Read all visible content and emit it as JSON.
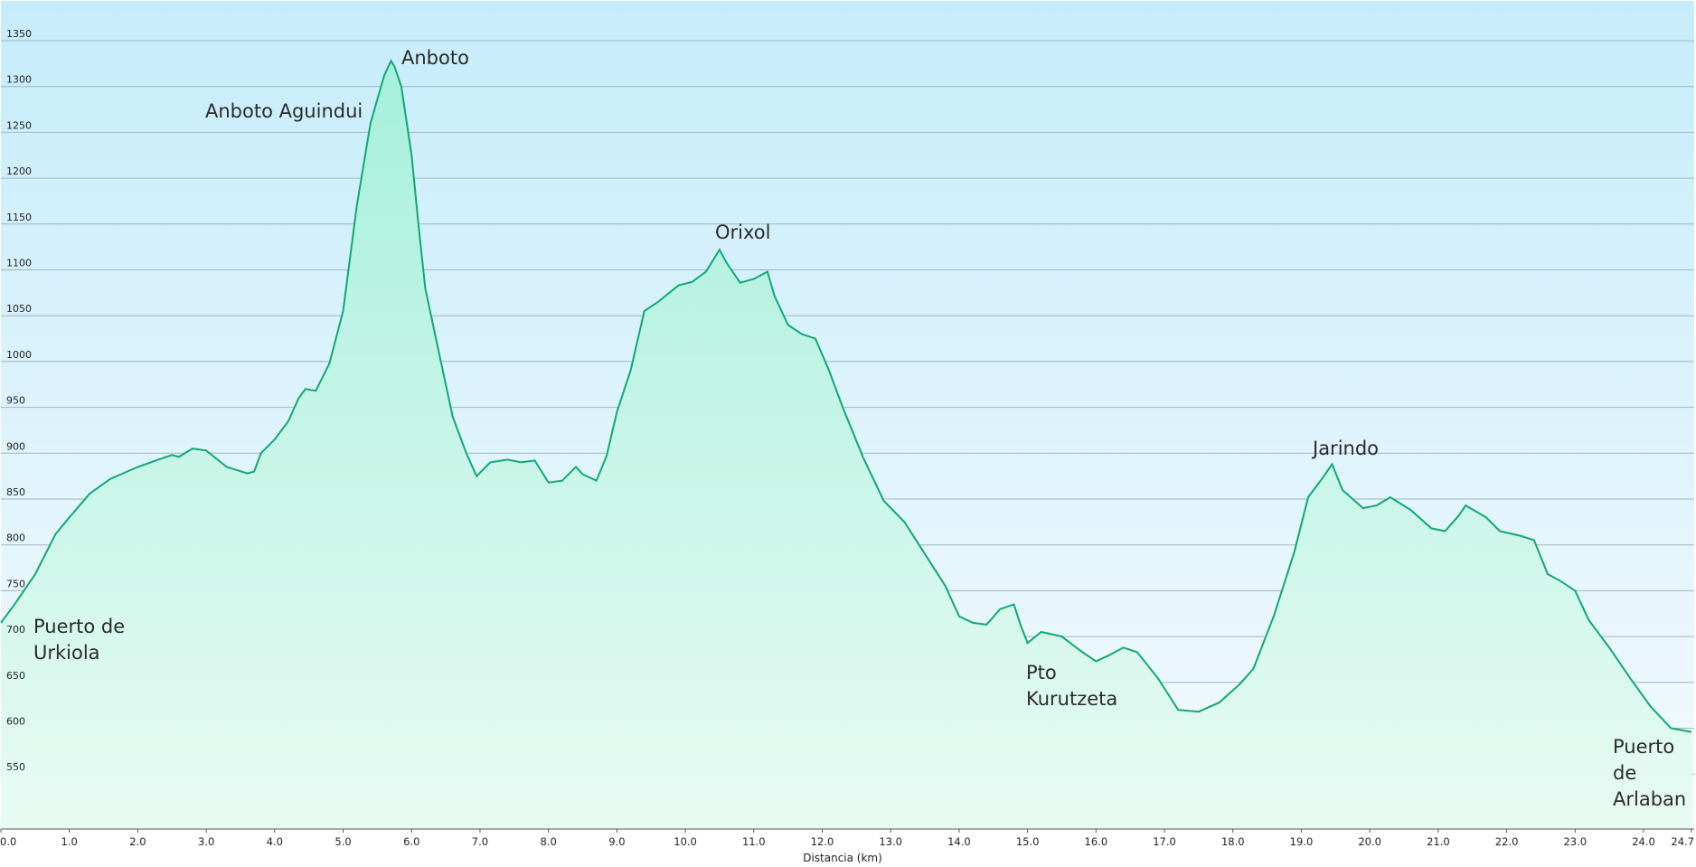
{
  "chart_data": {
    "type": "area",
    "title": "",
    "xlabel": "Distancia  (km)",
    "ylabel": "",
    "xlim": [
      0,
      24.7
    ],
    "ylim": [
      500,
      1400
    ],
    "grid": true,
    "legend": "none",
    "colors": {
      "line": "#11a873",
      "fill_top": "#a6efdc",
      "fill_bottom": "#e8fbf3",
      "bg_top": "#c6ecfb",
      "bg_bottom": "#f4fafd",
      "grid": "#9fb6bf"
    },
    "yticks": [
      550,
      600,
      650,
      700,
      750,
      800,
      850,
      900,
      950,
      1000,
      1050,
      1100,
      1150,
      1200,
      1250,
      1300,
      1350
    ],
    "xticks": [
      {
        "value": 0,
        "label": "0.0"
      },
      {
        "value": 1,
        "label": "1.0"
      },
      {
        "value": 2,
        "label": "2.0"
      },
      {
        "value": 3,
        "label": "3.0"
      },
      {
        "value": 4,
        "label": "4.0"
      },
      {
        "value": 5,
        "label": "5.0"
      },
      {
        "value": 6,
        "label": "6.0"
      },
      {
        "value": 7,
        "label": "7.0"
      },
      {
        "value": 8,
        "label": "8.0"
      },
      {
        "value": 9,
        "label": "9.0"
      },
      {
        "value": 10,
        "label": "10.0"
      },
      {
        "value": 11,
        "label": "11.0"
      },
      {
        "value": 12,
        "label": "12.0"
      },
      {
        "value": 13,
        "label": "13.0"
      },
      {
        "value": 14,
        "label": "14.0"
      },
      {
        "value": 15,
        "label": "15.0"
      },
      {
        "value": 16,
        "label": "16.0"
      },
      {
        "value": 17,
        "label": "17.0"
      },
      {
        "value": 18,
        "label": "18.0"
      },
      {
        "value": 19,
        "label": "19.0"
      },
      {
        "value": 20,
        "label": "20.0"
      },
      {
        "value": 21,
        "label": "21.0"
      },
      {
        "value": 22,
        "label": "22.0"
      },
      {
        "value": 23,
        "label": "23.0"
      },
      {
        "value": 24,
        "label": "24.0"
      },
      {
        "value": 24.7,
        "label": "24.7"
      }
    ],
    "series": [
      {
        "x": [
          0,
          0.2,
          0.5,
          0.8,
          1.0,
          1.3,
          1.6,
          2.0,
          2.3,
          2.5,
          2.6,
          2.8,
          3.0,
          3.3,
          3.6,
          3.7,
          3.8,
          4.0,
          4.2,
          4.35,
          4.45,
          4.6,
          4.8,
          5.0,
          5.2,
          5.4,
          5.6,
          5.7,
          5.75,
          5.85,
          6.0,
          6.1,
          6.2,
          6.4,
          6.6,
          6.8,
          6.95,
          7.15,
          7.4,
          7.6,
          7.8,
          8.0,
          8.2,
          8.4,
          8.5,
          8.7,
          8.85,
          9.0,
          9.2,
          9.4,
          9.6,
          9.9,
          10.1,
          10.3,
          10.5,
          10.6,
          10.8,
          11.0,
          11.2,
          11.3,
          11.5,
          11.7,
          11.9,
          12.1,
          12.3,
          12.6,
          12.9,
          13.2,
          13.5,
          13.8,
          14.0,
          14.2,
          14.4,
          14.6,
          14.8,
          14.9,
          15.0,
          15.2,
          15.5,
          15.8,
          16.0,
          16.2,
          16.4,
          16.6,
          16.9,
          17.2,
          17.5,
          17.8,
          18.1,
          18.3,
          18.6,
          18.9,
          19.1,
          19.3,
          19.45,
          19.6,
          19.9,
          20.1,
          20.3,
          20.6,
          20.9,
          21.1,
          21.3,
          21.4,
          21.7,
          21.9,
          22.2,
          22.4,
          22.6,
          22.8,
          23.0,
          23.2,
          23.5,
          23.8,
          24.1,
          24.4,
          24.7
        ],
        "y": [
          715,
          735,
          768,
          812,
          830,
          856,
          872,
          885,
          893,
          898,
          896,
          905,
          903,
          885,
          878,
          880,
          900,
          915,
          935,
          960,
          970,
          968,
          998,
          1055,
          1170,
          1260,
          1312,
          1328,
          1322,
          1300,
          1225,
          1150,
          1080,
          1010,
          940,
          900,
          875,
          890,
          893,
          890,
          892,
          868,
          870,
          885,
          877,
          870,
          897,
          945,
          990,
          1055,
          1065,
          1083,
          1087,
          1098,
          1122,
          1108,
          1086,
          1090,
          1098,
          1072,
          1040,
          1030,
          1025,
          990,
          950,
          895,
          848,
          825,
          790,
          755,
          722,
          715,
          713,
          730,
          735,
          712,
          693,
          705,
          700,
          683,
          673,
          680,
          688,
          683,
          655,
          620,
          618,
          628,
          648,
          665,
          723,
          793,
          852,
          872,
          888,
          860,
          840,
          843,
          852,
          838,
          818,
          815,
          832,
          843,
          830,
          815,
          810,
          805,
          768,
          760,
          750,
          718,
          688,
          655,
          624,
          600,
          596
        ]
      }
    ],
    "annotations": [
      {
        "lines": [
          "Puerto de",
          "Urkiola"
        ]
      },
      {
        "lines": [
          "Anboto Aguindui"
        ]
      },
      {
        "lines": [
          "Anboto"
        ]
      },
      {
        "lines": [
          "Orixol"
        ]
      },
      {
        "lines": [
          "Pto",
          "Kurutzeta"
        ]
      },
      {
        "lines": [
          "Jarindo"
        ]
      },
      {
        "lines": [
          "Puerto",
          "de",
          "Arlaban"
        ]
      }
    ]
  }
}
